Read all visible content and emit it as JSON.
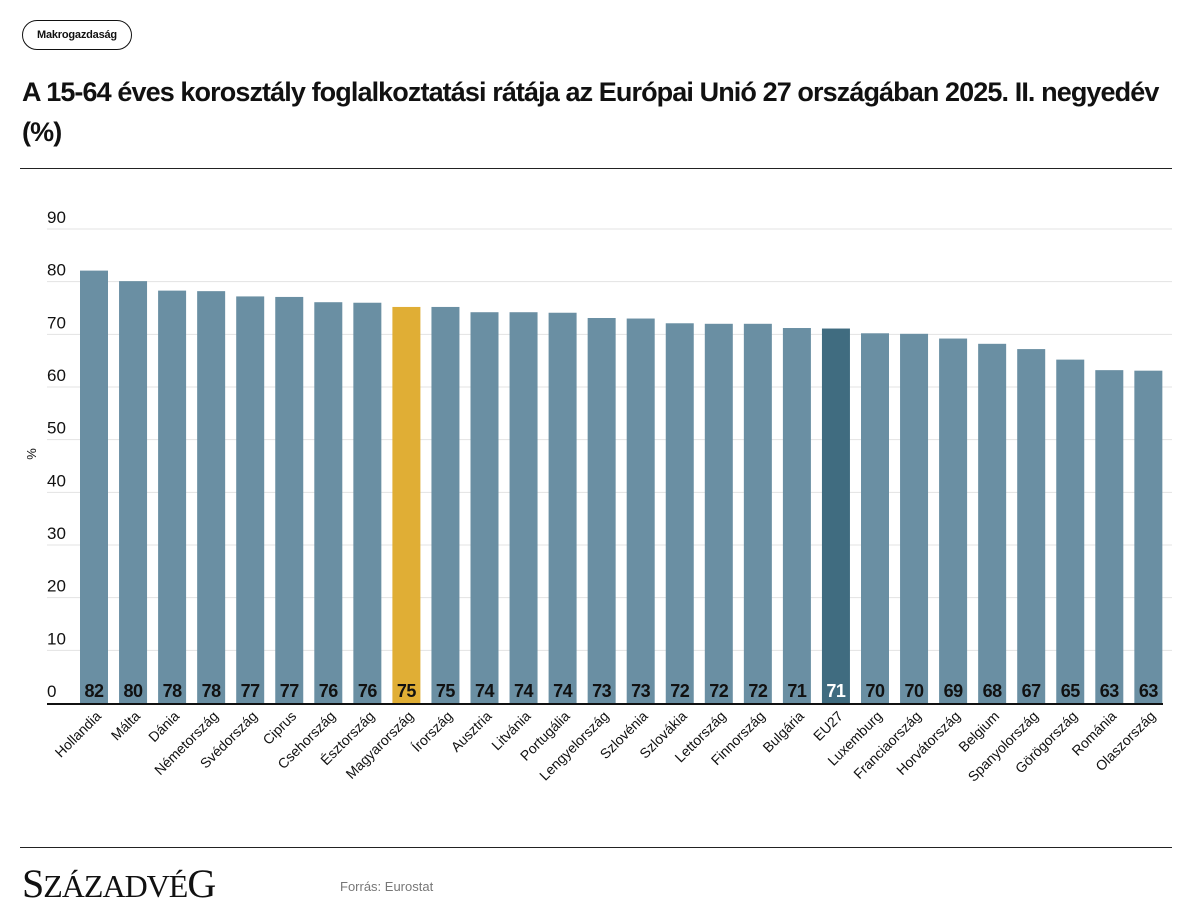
{
  "header": {
    "tag_label": "Makrogazdaság",
    "title": "A 15-64 éves korosztály foglalkoztatási rátája az Európai Unió 27 országában 2025. II. negyedév (%)"
  },
  "footer": {
    "logo_text": "Századvég",
    "source": "Forrás: Eurostat"
  },
  "colors": {
    "bar_default": "#6a8fa3",
    "bar_highlight": "#e0ae35",
    "bar_eu": "#406c80",
    "gridline": "#e3e3e3",
    "axis": "#111111"
  },
  "chart_data": {
    "type": "bar",
    "title": "A 15-64 éves korosztály foglalkoztatási rátája az Európai Unió 27 országában 2025. II. negyedév (%)",
    "xlabel": "",
    "ylabel": "%",
    "ylim": [
      0,
      90
    ],
    "yticks": [
      0,
      10,
      20,
      30,
      40,
      50,
      60,
      70,
      80,
      90
    ],
    "grid": true,
    "legend": "none",
    "categories": [
      "Hollandia",
      "Málta",
      "Dánia",
      "Németország",
      "Svédország",
      "Ciprus",
      "Csehország",
      "Észtország",
      "Magyarország",
      "Írország",
      "Ausztria",
      "Litvánia",
      "Portugália",
      "Lengyelország",
      "Szlovénia",
      "Szlovákia",
      "Lettország",
      "Finnország",
      "Bulgária",
      "EU27",
      "Luxemburg",
      "Franciaország",
      "Horvátország",
      "Belgium",
      "Spanyolország",
      "Görögország",
      "Románia",
      "Olaszország"
    ],
    "values": [
      82.1,
      80.1,
      78.3,
      78.2,
      77.2,
      77.1,
      76.1,
      76.0,
      75.2,
      75.2,
      74.2,
      74.2,
      74.1,
      73.1,
      73.0,
      72.1,
      72.0,
      72.0,
      71.2,
      71.1,
      70.2,
      70.1,
      69.2,
      68.2,
      67.2,
      65.2,
      63.2,
      63.1
    ],
    "labels": [
      "82",
      "80",
      "78",
      "78",
      "77",
      "77",
      "76",
      "76",
      "75",
      "75",
      "74",
      "74",
      "74",
      "73",
      "73",
      "72",
      "72",
      "72",
      "71",
      "71",
      "70",
      "70",
      "69",
      "68",
      "67",
      "65",
      "63",
      "63"
    ],
    "highlight": {
      "Magyarország": "highlight",
      "EU27": "eu"
    }
  }
}
